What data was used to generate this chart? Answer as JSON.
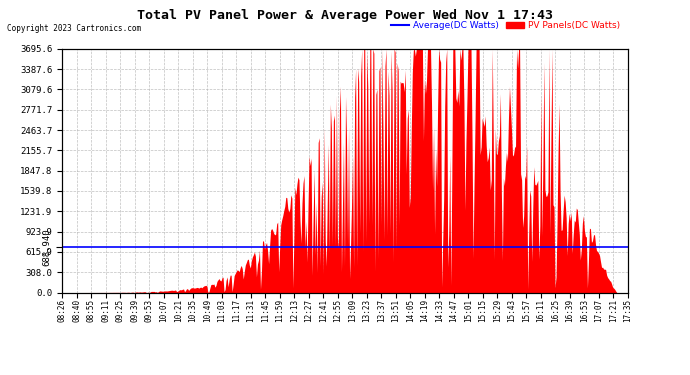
{
  "title": "Total PV Panel Power & Average Power Wed Nov 1 17:43",
  "copyright": "Copyright 2023 Cartronics.com",
  "legend_avg": "Average(DC Watts)",
  "legend_pv": "PV Panels(DC Watts)",
  "average_value": 688.94,
  "y_right_ticks": [
    0.0,
    308.0,
    615.9,
    923.9,
    1231.9,
    1539.8,
    1847.8,
    2155.7,
    2463.7,
    2771.7,
    3079.6,
    3387.6,
    3695.6
  ],
  "y_max": 3695.6,
  "background_color": "#ffffff",
  "plot_bg_color": "#ffffff",
  "grid_color": "#b0b0b0",
  "bar_color": "#ff0000",
  "avg_line_color": "#0000ff",
  "title_color": "#000000",
  "copyright_color": "#000000",
  "x_labels": [
    "08:26",
    "08:40",
    "08:55",
    "09:11",
    "09:25",
    "09:39",
    "09:53",
    "10:07",
    "10:21",
    "10:35",
    "10:49",
    "11:03",
    "11:17",
    "11:31",
    "11:45",
    "11:59",
    "12:13",
    "12:27",
    "12:41",
    "12:55",
    "13:09",
    "13:23",
    "13:37",
    "13:51",
    "14:05",
    "14:19",
    "14:33",
    "14:47",
    "15:01",
    "15:15",
    "15:29",
    "15:43",
    "15:57",
    "16:11",
    "16:25",
    "16:39",
    "16:53",
    "17:07",
    "17:21",
    "17:35"
  ]
}
